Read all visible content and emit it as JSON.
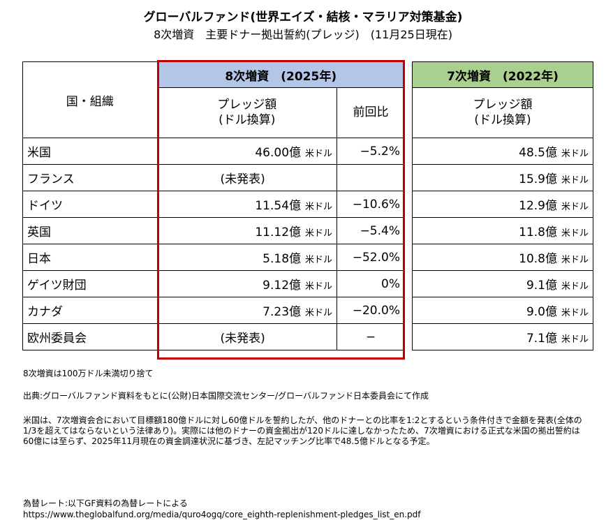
{
  "title": "グローバルファンド(世界エイズ・結核・マラリア対策基金)",
  "subtitle": "8次増資　主要ドナー拠出誓約(プレッジ)　(11月25日現在)",
  "table": {
    "col_org": "国・組織",
    "band8": "8次増資　(2025年)",
    "band7": "7次増資　(2022年)",
    "col_pledge": "プレッジ額\n(ドル換算)",
    "col_pledge_l1": "プレッジ額",
    "col_pledge_l2": "(ドル換算)",
    "col_ratio": "前回比",
    "unit": "米ドル",
    "rows": [
      {
        "org": "米国",
        "p8": "46.00億",
        "ratio": "−5.2%",
        "p7": "48.5億"
      },
      {
        "org": "フランス",
        "p8": "(未発表)",
        "ratio": "",
        "p7": "15.9億"
      },
      {
        "org": "ドイツ",
        "p8": "11.54億",
        "ratio": "−10.6%",
        "p7": "12.9億"
      },
      {
        "org": "英国",
        "p8": "11.12億",
        "ratio": "−5.4%",
        "p7": "11.8億"
      },
      {
        "org": "日本",
        "p8": "5.18億",
        "ratio": "−52.0%",
        "p7": "10.8億"
      },
      {
        "org": "ゲイツ財団",
        "p8": "9.12億",
        "ratio": "0%",
        "p7": "9.1億"
      },
      {
        "org": "カナダ",
        "p8": "7.23億",
        "ratio": "−20.0%",
        "p7": "9.0億"
      },
      {
        "org": "欧州委員会",
        "p8": "(未発表)",
        "ratio": "−",
        "p7": "7.1億"
      }
    ]
  },
  "notes": {
    "rounding": "8次増資は100万ドル未満切り捨て",
    "source": "出典:グローバルファンド資料をもとに(公財)日本国際交流センター/グローバルファンド日本委員会にて作成",
    "us_note": "米国は、7次増資会合において目標額180億ドルに対し60億ドルを誓約したが、他のドナーとの比率を1:2とするという条件付きで金額を発表(全体の1/3を超えてはならないという法律あり)。実際には他のドナーの資金拠出が120ドルに達しなかったため、7次増資における正式な米国の拠出誓約は60億には至らず、2025年11月現在の資金調達状況に基づき、左記マッチング比率で48.5億ドルとなる予定。",
    "fx": "為替レート:以下GF資料の為替レートによる",
    "url": "https://www.theglobalfund.org/media/quro4ogq/core_eighth-replenishment-pledges_list_en.pdf"
  }
}
